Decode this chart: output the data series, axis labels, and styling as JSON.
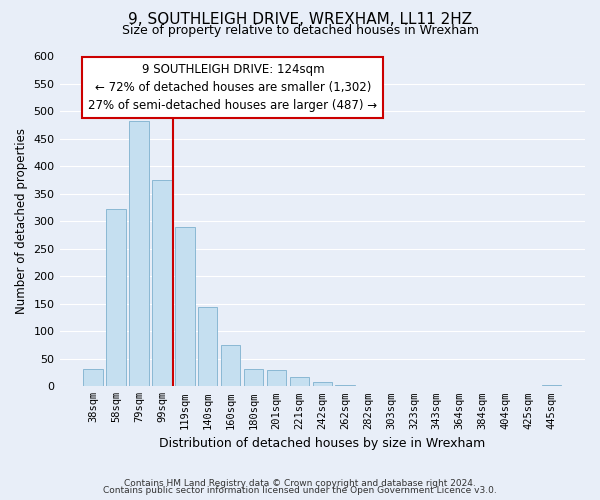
{
  "title1": "9, SOUTHLEIGH DRIVE, WREXHAM, LL11 2HZ",
  "title2": "Size of property relative to detached houses in Wrexham",
  "xlabel": "Distribution of detached houses by size in Wrexham",
  "ylabel": "Number of detached properties",
  "categories": [
    "38sqm",
    "58sqm",
    "79sqm",
    "99sqm",
    "119sqm",
    "140sqm",
    "160sqm",
    "180sqm",
    "201sqm",
    "221sqm",
    "242sqm",
    "262sqm",
    "282sqm",
    "303sqm",
    "323sqm",
    "343sqm",
    "364sqm",
    "384sqm",
    "404sqm",
    "425sqm",
    "445sqm"
  ],
  "values": [
    32,
    322,
    482,
    375,
    290,
    145,
    75,
    32,
    30,
    17,
    8,
    3,
    1,
    1,
    0,
    0,
    0,
    0,
    0,
    0,
    2
  ],
  "bar_color": "#c5dff0",
  "bar_edge_color": "#8ab8d4",
  "vline_color": "#cc0000",
  "annotation_title": "9 SOUTHLEIGH DRIVE: 124sqm",
  "annotation_line1": "← 72% of detached houses are smaller (1,302)",
  "annotation_line2": "27% of semi-detached houses are larger (487) →",
  "annotation_box_color": "white",
  "annotation_box_edge_color": "#cc0000",
  "ylim": [
    0,
    600
  ],
  "yticks": [
    0,
    50,
    100,
    150,
    200,
    250,
    300,
    350,
    400,
    450,
    500,
    550,
    600
  ],
  "footer1": "Contains HM Land Registry data © Crown copyright and database right 2024.",
  "footer2": "Contains public sector information licensed under the Open Government Licence v3.0.",
  "bg_color": "#e8eef8",
  "plot_bg_color": "#e8eef8",
  "title_fontsize": 11,
  "subtitle_fontsize": 9
}
